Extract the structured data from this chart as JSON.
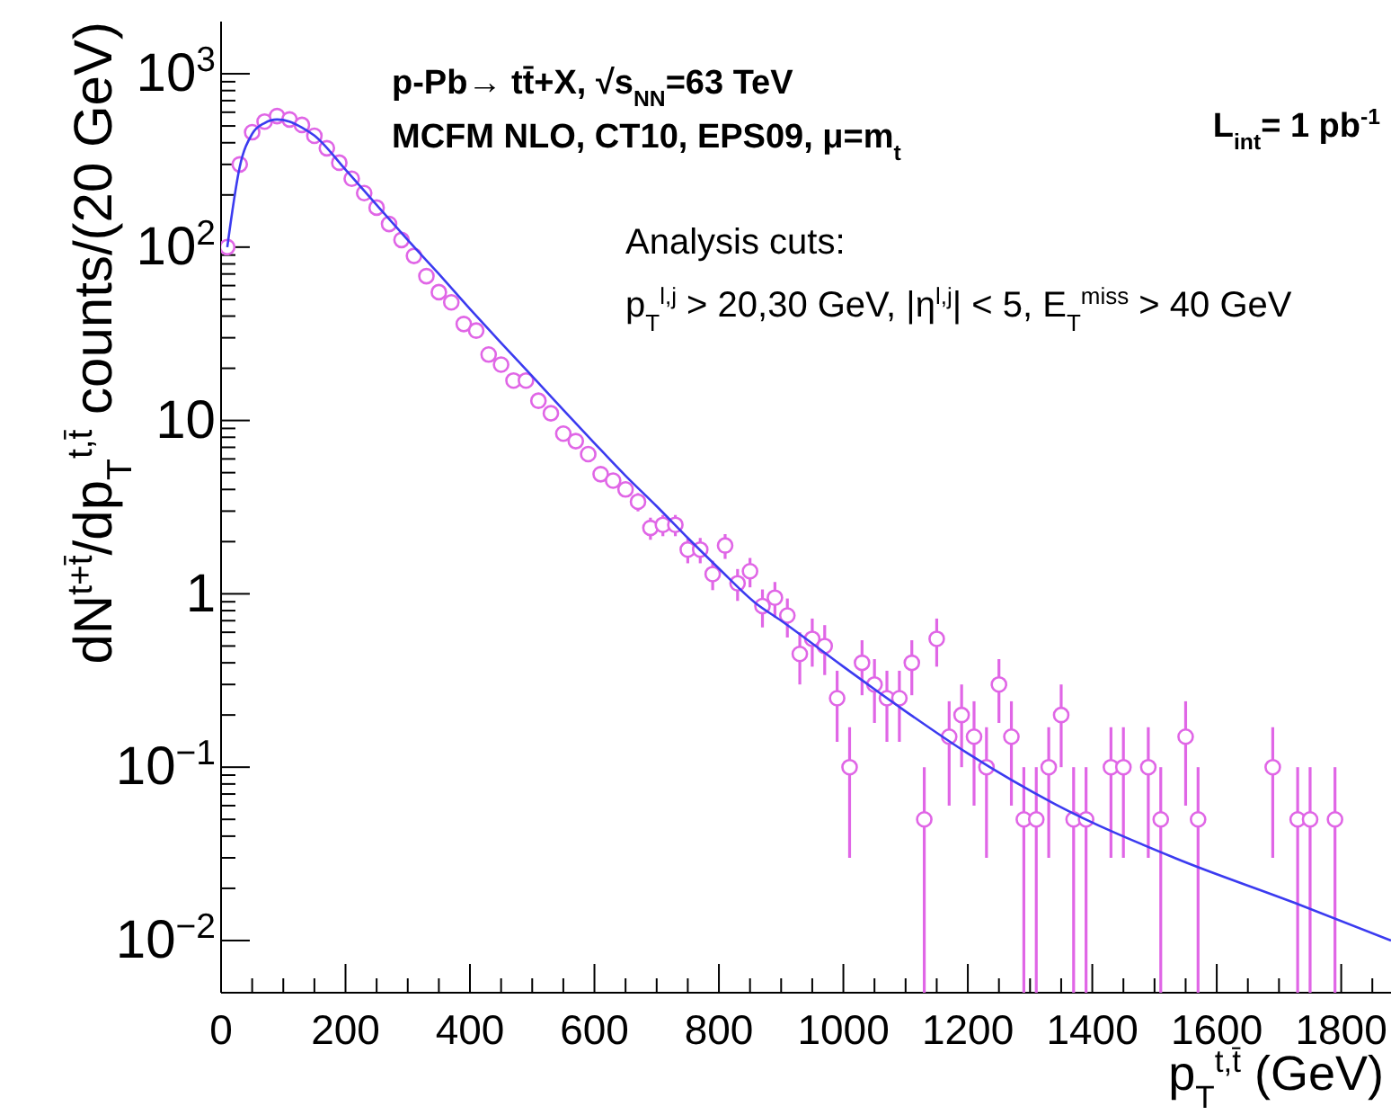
{
  "chart_data": {
    "type": "scatter",
    "xlabel": "p$_{T}$$^{t,t̄}$ (GeV)",
    "ylabel": "dN$^{t+t̄}$/dp$_{T}$$^{t,t̄}$ counts/(20 GeV)",
    "log": "y",
    "xlim": [
      0,
      1880
    ],
    "ylim": [
      0.005,
      2000
    ],
    "xticks": [
      0,
      {
        "value": 50,
        "label": null
      },
      {
        "value": 100,
        "label": null
      },
      {
        "value": 150,
        "label": null
      },
      200,
      {
        "value": 250,
        "label": null
      },
      {
        "value": 300,
        "label": null
      },
      {
        "value": 350,
        "label": null
      },
      400,
      {
        "value": 450,
        "label": null
      },
      {
        "value": 500,
        "label": null
      },
      {
        "value": 550,
        "label": null
      },
      600,
      {
        "value": 650,
        "label": null
      },
      {
        "value": 700,
        "label": null
      },
      {
        "value": 750,
        "label": null
      },
      800,
      {
        "value": 850,
        "label": null
      },
      {
        "value": 900,
        "label": null
      },
      {
        "value": 950,
        "label": null
      },
      1000,
      {
        "value": 1050,
        "label": null
      },
      {
        "value": 1100,
        "label": null
      },
      {
        "value": 1150,
        "label": null
      },
      1200,
      {
        "value": 1250,
        "label": null
      },
      {
        "value": 1300,
        "label": null
      },
      {
        "value": 1350,
        "label": null
      },
      1400,
      {
        "value": 1450,
        "label": null
      },
      {
        "value": 1500,
        "label": null
      },
      {
        "value": 1550,
        "label": null
      },
      1600,
      {
        "value": 1650,
        "label": null
      },
      {
        "value": 1700,
        "label": null
      },
      {
        "value": 1750,
        "label": null
      },
      1800,
      {
        "value": 1850,
        "label": null
      }
    ],
    "yticks": [
      {
        "value": 0.01,
        "label": "10$^{−2}$"
      },
      {
        "value": 0.02,
        "label": null
      },
      {
        "value": 0.03,
        "label": null
      },
      {
        "value": 0.04,
        "label": null
      },
      {
        "value": 0.05,
        "label": null
      },
      {
        "value": 0.06,
        "label": null
      },
      {
        "value": 0.07,
        "label": null
      },
      {
        "value": 0.08,
        "label": null
      },
      {
        "value": 0.09,
        "label": null
      },
      {
        "value": 0.1,
        "label": "10$^{−1}$"
      },
      {
        "value": 0.2,
        "label": null
      },
      {
        "value": 0.3,
        "label": null
      },
      {
        "value": 0.4,
        "label": null
      },
      {
        "value": 0.5,
        "label": null
      },
      {
        "value": 0.6,
        "label": null
      },
      {
        "value": 0.7,
        "label": null
      },
      {
        "value": 0.8,
        "label": null
      },
      {
        "value": 0.9,
        "label": null
      },
      1,
      {
        "value": 2,
        "label": null
      },
      {
        "value": 3,
        "label": null
      },
      {
        "value": 4,
        "label": null
      },
      {
        "value": 5,
        "label": null
      },
      {
        "value": 6,
        "label": null
      },
      {
        "value": 7,
        "label": null
      },
      {
        "value": 8,
        "label": null
      },
      {
        "value": 9,
        "label": null
      },
      10,
      {
        "value": 20,
        "label": null
      },
      {
        "value": 30,
        "label": null
      },
      {
        "value": 40,
        "label": null
      },
      {
        "value": 50,
        "label": null
      },
      {
        "value": 60,
        "label": null
      },
      {
        "value": 70,
        "label": null
      },
      {
        "value": 80,
        "label": null
      },
      {
        "value": 90,
        "label": null
      },
      {
        "value": 100,
        "label": "10$^{2}$"
      },
      {
        "value": 200,
        "label": null
      },
      {
        "value": 300,
        "label": null
      },
      {
        "value": 400,
        "label": null
      },
      {
        "value": 500,
        "label": null
      },
      {
        "value": 600,
        "label": null
      },
      {
        "value": 700,
        "label": null
      },
      {
        "value": 800,
        "label": null
      },
      {
        "value": 900,
        "label": null
      },
      {
        "value": 1000,
        "label": "10$^{3}$"
      }
    ],
    "annotations": [
      "p-Pb→ tt̄+X,  √s$_{NN}$=63 TeV",
      "MCFM NLO, CT10, EPS09, μ=m$_{t}$",
      "L$_{int}$= 1 pb$^{-1}$",
      "Analysis cuts:",
      "p$_{T}$$^{l,j}$ > 20,30 GeV, |η$^{l,j}$| < 5, E$_{T}$$^{miss}$ > 40 GeV"
    ],
    "series": [
      {
        "color": "#e066e6",
        "marker": "circle",
        "x": [
          10,
          30,
          50,
          70,
          90,
          110,
          130,
          150,
          170,
          190,
          210,
          230,
          250,
          270,
          290,
          310,
          330,
          350,
          370,
          390,
          410,
          430,
          450,
          470,
          490,
          510,
          530,
          550,
          570,
          590,
          610,
          630,
          650,
          670,
          690,
          710,
          730,
          750,
          770,
          790,
          810,
          830,
          850,
          870,
          890,
          910,
          930,
          950,
          970,
          990,
          1010,
          1030,
          1050,
          1070,
          1090,
          1110,
          1130,
          1150,
          1170,
          1190,
          1210,
          1230,
          1250,
          1270,
          1290,
          1310,
          1330,
          1350,
          1370,
          1390,
          1430,
          1450,
          1490,
          1510,
          1550,
          1570,
          1690,
          1730,
          1750,
          1790
        ],
        "values": [
          100,
          300,
          460,
          530,
          570,
          545,
          507,
          439,
          372,
          307,
          248,
          205,
          169,
          136,
          110,
          89,
          68,
          55,
          48,
          36,
          33,
          24,
          21,
          17,
          17,
          13,
          11,
          8.4,
          7.6,
          6.4,
          4.9,
          4.5,
          4.0,
          3.4,
          2.4,
          2.5,
          2.5,
          1.8,
          1.8,
          1.3,
          1.9,
          1.15,
          1.35,
          0.85,
          0.95,
          0.75,
          0.45,
          0.55,
          0.5,
          0.25,
          0.1,
          0.4,
          0.3,
          0.25,
          0.25,
          0.4,
          0.05,
          0.55,
          0.15,
          0.2,
          0.15,
          0.1,
          0.3,
          0.15,
          0.05,
          0.05,
          0.1,
          0.2,
          0.05,
          0.05,
          0.1,
          0.1,
          0.1,
          0.05,
          0.15,
          0.05,
          0.1,
          0.05,
          0.05,
          0.05
        ],
        "errors": [
          null,
          null,
          null,
          null,
          null,
          null,
          null,
          null,
          null,
          null,
          null,
          null,
          null,
          null,
          null,
          null,
          null,
          null,
          null,
          null,
          null,
          null,
          null,
          null,
          null,
          null,
          null,
          null,
          null,
          null,
          null,
          null,
          null,
          0.41,
          0.35,
          0.35,
          0.35,
          0.3,
          0.3,
          0.25,
          0.31,
          0.24,
          0.26,
          0.21,
          0.22,
          0.19,
          0.15,
          0.17,
          0.16,
          0.11,
          0.07,
          0.14,
          0.12,
          0.11,
          0.11,
          0.14,
          [
            0.005,
            0.1
          ],
          0.17,
          0.09,
          0.1,
          0.09,
          0.07,
          0.12,
          0.09,
          [
            0.005,
            0.1
          ],
          [
            0.005,
            0.1
          ],
          0.07,
          0.1,
          [
            0.005,
            0.1
          ],
          [
            0.005,
            0.1
          ],
          0.07,
          0.07,
          0.07,
          [
            0.005,
            0.1
          ],
          0.09,
          [
            0.005,
            0.1
          ],
          0.07,
          [
            0.005,
            0.1
          ],
          [
            0.005,
            0.1
          ],
          [
            0.005,
            0.1
          ]
        ]
      },
      {
        "type": "line",
        "color": "#3b3bf0",
        "marker": "none",
        "line_style": "solid",
        "x": [
          10,
          30,
          50,
          70,
          90,
          110,
          130,
          150,
          200,
          250,
          300,
          350,
          400,
          450,
          500,
          550,
          600,
          650,
          700,
          750,
          800,
          858,
          900,
          1000,
          1100,
          1200,
          1341,
          1532,
          1725,
          1880
        ],
        "values": [
          100,
          290,
          450,
          520,
          545,
          530,
          490,
          440,
          280,
          175,
          110,
          70,
          44,
          28,
          18,
          11.5,
          7.4,
          4.8,
          3.2,
          2.1,
          1.4,
          0.89,
          0.7,
          0.38,
          0.21,
          0.12,
          0.061,
          0.03,
          0.0165,
          0.01
        ]
      }
    ]
  }
}
